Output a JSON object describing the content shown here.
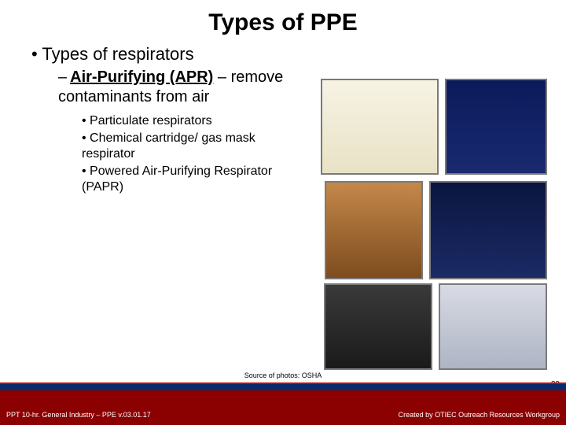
{
  "title": "Types of PPE",
  "bullet1": "Types of respirators",
  "sub_dash": "–",
  "sub_bold": "Air-Purifying (APR)",
  "sub_tail": " – remove contaminants from air",
  "subsub1": "Particulate respirators",
  "subsub2": "Chemical cartridge/ gas mask respirator",
  "subsub3": "Powered Air-Purifying Respirator (PAPR)",
  "source": "Source of photos: OSHA",
  "footer_left": "PPT 10-hr. General Industry – PPE v.03.01.17",
  "footer_right": "Created by OTIEC Outreach Resources Workgroup",
  "slide_number": "29",
  "colors": {
    "footer_bar": "#8b0000",
    "footer_accent": "#0a2a6a",
    "accent_border": "#c00",
    "text": "#000000",
    "footer_text": "#ffffff"
  }
}
